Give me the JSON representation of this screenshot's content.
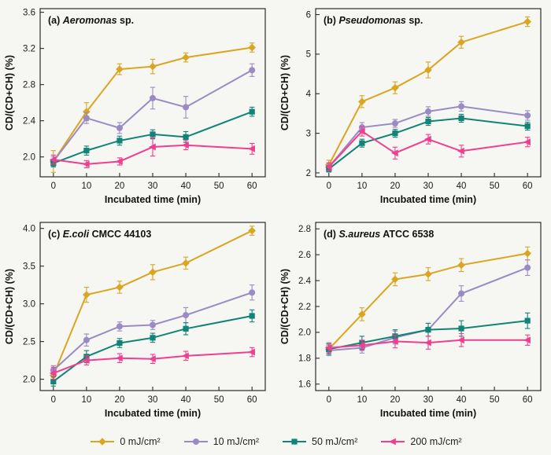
{
  "figure": {
    "xlabel": "Incubated time (min)",
    "ylabel": "CD/(CD+CH) (%)"
  },
  "legend": {
    "items": [
      {
        "label": "0 mJ/cm²",
        "color": "#DAA520",
        "marker": "diamond"
      },
      {
        "label": "10 mJ/cm²",
        "color": "#9A8BC5",
        "marker": "circle"
      },
      {
        "label": "50 mJ/cm²",
        "color": "#128477",
        "marker": "square"
      },
      {
        "label": "200 mJ/cm²",
        "color": "#F23E8E",
        "marker": "triangle-left"
      }
    ]
  },
  "chart_data": [
    {
      "type": "line",
      "title_prefix": "(a) ",
      "title_italic": "Aeromonas",
      "title_suffix": " sp.",
      "xlabel": "Incubated time (min)",
      "ylabel": "CD/(CD+CH) (%)",
      "x": [
        0,
        10,
        20,
        30,
        40,
        60
      ],
      "xticks": [
        0,
        10,
        20,
        30,
        40,
        50,
        60
      ],
      "xlim": [
        -4,
        64
      ],
      "ylim": [
        1.78,
        3.64
      ],
      "yticks": [
        2.0,
        2.4,
        2.8,
        3.2,
        3.6
      ],
      "ytick_labels": [
        "2.0",
        "2.4",
        "2.8",
        "3.2",
        "3.6"
      ],
      "series": [
        {
          "name": "0 mJ/cm²",
          "color": "#DAA520",
          "marker": "diamond",
          "values": [
            1.95,
            2.5,
            2.97,
            3.0,
            3.1,
            3.21
          ],
          "err": [
            0.12,
            0.1,
            0.06,
            0.08,
            0.05,
            0.05
          ]
        },
        {
          "name": "10 mJ/cm²",
          "color": "#9A8BC5",
          "marker": "circle",
          "values": [
            1.95,
            2.43,
            2.32,
            2.65,
            2.55,
            2.96
          ],
          "err": [
            0.05,
            0.06,
            0.06,
            0.12,
            0.12,
            0.07
          ]
        },
        {
          "name": "50 mJ/cm²",
          "color": "#128477",
          "marker": "square",
          "values": [
            1.93,
            2.07,
            2.18,
            2.25,
            2.22,
            2.5
          ],
          "err": [
            0.04,
            0.05,
            0.05,
            0.05,
            0.06,
            0.05
          ]
        },
        {
          "name": "200 mJ/cm²",
          "color": "#F23E8E",
          "marker": "triangle-left",
          "values": [
            1.97,
            1.92,
            1.95,
            2.11,
            2.13,
            2.09
          ],
          "err": [
            0.05,
            0.04,
            0.04,
            0.1,
            0.05,
            0.06
          ]
        }
      ]
    },
    {
      "type": "line",
      "title_prefix": "(b) ",
      "title_italic": "Pseudomonas",
      "title_suffix": " sp.",
      "xlabel": "Incubated time (min)",
      "ylabel": "CD/(CD+CH) (%)",
      "x": [
        0,
        10,
        20,
        30,
        40,
        60
      ],
      "xticks": [
        0,
        10,
        20,
        30,
        40,
        50,
        60
      ],
      "xlim": [
        -4,
        64
      ],
      "ylim": [
        1.9,
        6.15
      ],
      "yticks": [
        2,
        3,
        4,
        5,
        6
      ],
      "ytick_labels": [
        "2",
        "3",
        "4",
        "5",
        "6"
      ],
      "series": [
        {
          "name": "0 mJ/cm²",
          "color": "#DAA520",
          "marker": "diamond",
          "values": [
            2.2,
            3.8,
            4.15,
            4.6,
            5.3,
            5.82
          ],
          "err": [
            0.12,
            0.15,
            0.15,
            0.2,
            0.15,
            0.12
          ]
        },
        {
          "name": "10 mJ/cm²",
          "color": "#9A8BC5",
          "marker": "circle",
          "values": [
            2.15,
            3.15,
            3.25,
            3.55,
            3.68,
            3.45
          ],
          "err": [
            0.1,
            0.12,
            0.1,
            0.12,
            0.12,
            0.12
          ]
        },
        {
          "name": "50 mJ/cm²",
          "color": "#128477",
          "marker": "square",
          "values": [
            2.1,
            2.75,
            3.0,
            3.3,
            3.38,
            3.18
          ],
          "err": [
            0.08,
            0.1,
            0.1,
            0.1,
            0.1,
            0.1
          ]
        },
        {
          "name": "200 mJ/cm²",
          "color": "#F23E8E",
          "marker": "triangle-left",
          "values": [
            2.15,
            3.05,
            2.5,
            2.85,
            2.55,
            2.78
          ],
          "err": [
            0.1,
            0.12,
            0.15,
            0.12,
            0.15,
            0.12
          ]
        }
      ]
    },
    {
      "type": "line",
      "title_prefix": "(c) ",
      "title_italic": "E.coli",
      "title_suffix": " CMCC 44103",
      "xlabel": "Incubated time (min)",
      "ylabel": "CD/(CD+CH) (%)",
      "x": [
        0,
        10,
        20,
        30,
        40,
        60
      ],
      "xticks": [
        0,
        10,
        20,
        30,
        40,
        50,
        60
      ],
      "xlim": [
        -4,
        64
      ],
      "ylim": [
        1.85,
        4.08
      ],
      "yticks": [
        2.0,
        2.5,
        3.0,
        3.5,
        4.0
      ],
      "ytick_labels": [
        "2.0",
        "2.5",
        "3.0",
        "3.5",
        "4.0"
      ],
      "series": [
        {
          "name": "0 mJ/cm²",
          "color": "#DAA520",
          "marker": "diamond",
          "values": [
            2.05,
            3.12,
            3.22,
            3.42,
            3.54,
            3.97
          ],
          "err": [
            0.08,
            0.1,
            0.08,
            0.1,
            0.08,
            0.06
          ]
        },
        {
          "name": "10 mJ/cm²",
          "color": "#9A8BC5",
          "marker": "circle",
          "values": [
            2.12,
            2.52,
            2.7,
            2.72,
            2.85,
            3.15
          ],
          "err": [
            0.06,
            0.08,
            0.06,
            0.06,
            0.1,
            0.1
          ]
        },
        {
          "name": "50 mJ/cm²",
          "color": "#128477",
          "marker": "square",
          "values": [
            1.97,
            2.3,
            2.48,
            2.55,
            2.67,
            2.84
          ],
          "err": [
            0.06,
            0.08,
            0.06,
            0.06,
            0.08,
            0.08
          ]
        },
        {
          "name": "200 mJ/cm²",
          "color": "#F23E8E",
          "marker": "triangle-left",
          "values": [
            2.08,
            2.25,
            2.28,
            2.27,
            2.31,
            2.36
          ],
          "err": [
            0.08,
            0.06,
            0.06,
            0.06,
            0.06,
            0.06
          ]
        }
      ]
    },
    {
      "type": "line",
      "title_prefix": "(d) ",
      "title_italic": "S.aureus",
      "title_suffix": " ATCC 6538",
      "xlabel": "Incubated time (min)",
      "ylabel": "CD/(CD+CH) (%)",
      "x": [
        0,
        10,
        20,
        30,
        40,
        60
      ],
      "xticks": [
        0,
        10,
        20,
        30,
        40,
        50,
        60
      ],
      "xlim": [
        -4,
        64
      ],
      "ylim": [
        1.55,
        2.85
      ],
      "yticks": [
        1.6,
        1.8,
        2.0,
        2.2,
        2.4,
        2.6,
        2.8
      ],
      "ytick_labels": [
        "1.6",
        "1.8",
        "2.0",
        "2.2",
        "2.4",
        "2.6",
        "2.8"
      ],
      "series": [
        {
          "name": "0 mJ/cm²",
          "color": "#DAA520",
          "marker": "diamond",
          "values": [
            1.87,
            2.14,
            2.41,
            2.45,
            2.52,
            2.61
          ],
          "err": [
            0.04,
            0.05,
            0.05,
            0.05,
            0.05,
            0.05
          ]
        },
        {
          "name": "10 mJ/cm²",
          "color": "#9A8BC5",
          "marker": "circle",
          "values": [
            1.86,
            1.88,
            1.96,
            2.02,
            2.3,
            2.5
          ],
          "err": [
            0.04,
            0.04,
            0.05,
            0.05,
            0.06,
            0.06
          ]
        },
        {
          "name": "50 mJ/cm²",
          "color": "#128477",
          "marker": "square",
          "values": [
            1.87,
            1.92,
            1.97,
            2.02,
            2.03,
            2.09
          ],
          "err": [
            0.04,
            0.05,
            0.05,
            0.05,
            0.06,
            0.06
          ]
        },
        {
          "name": "200 mJ/cm²",
          "color": "#F23E8E",
          "marker": "triangle-left",
          "values": [
            1.88,
            1.9,
            1.93,
            1.92,
            1.94,
            1.94
          ],
          "err": [
            0.04,
            0.04,
            0.05,
            0.05,
            0.05,
            0.04
          ]
        }
      ]
    }
  ]
}
